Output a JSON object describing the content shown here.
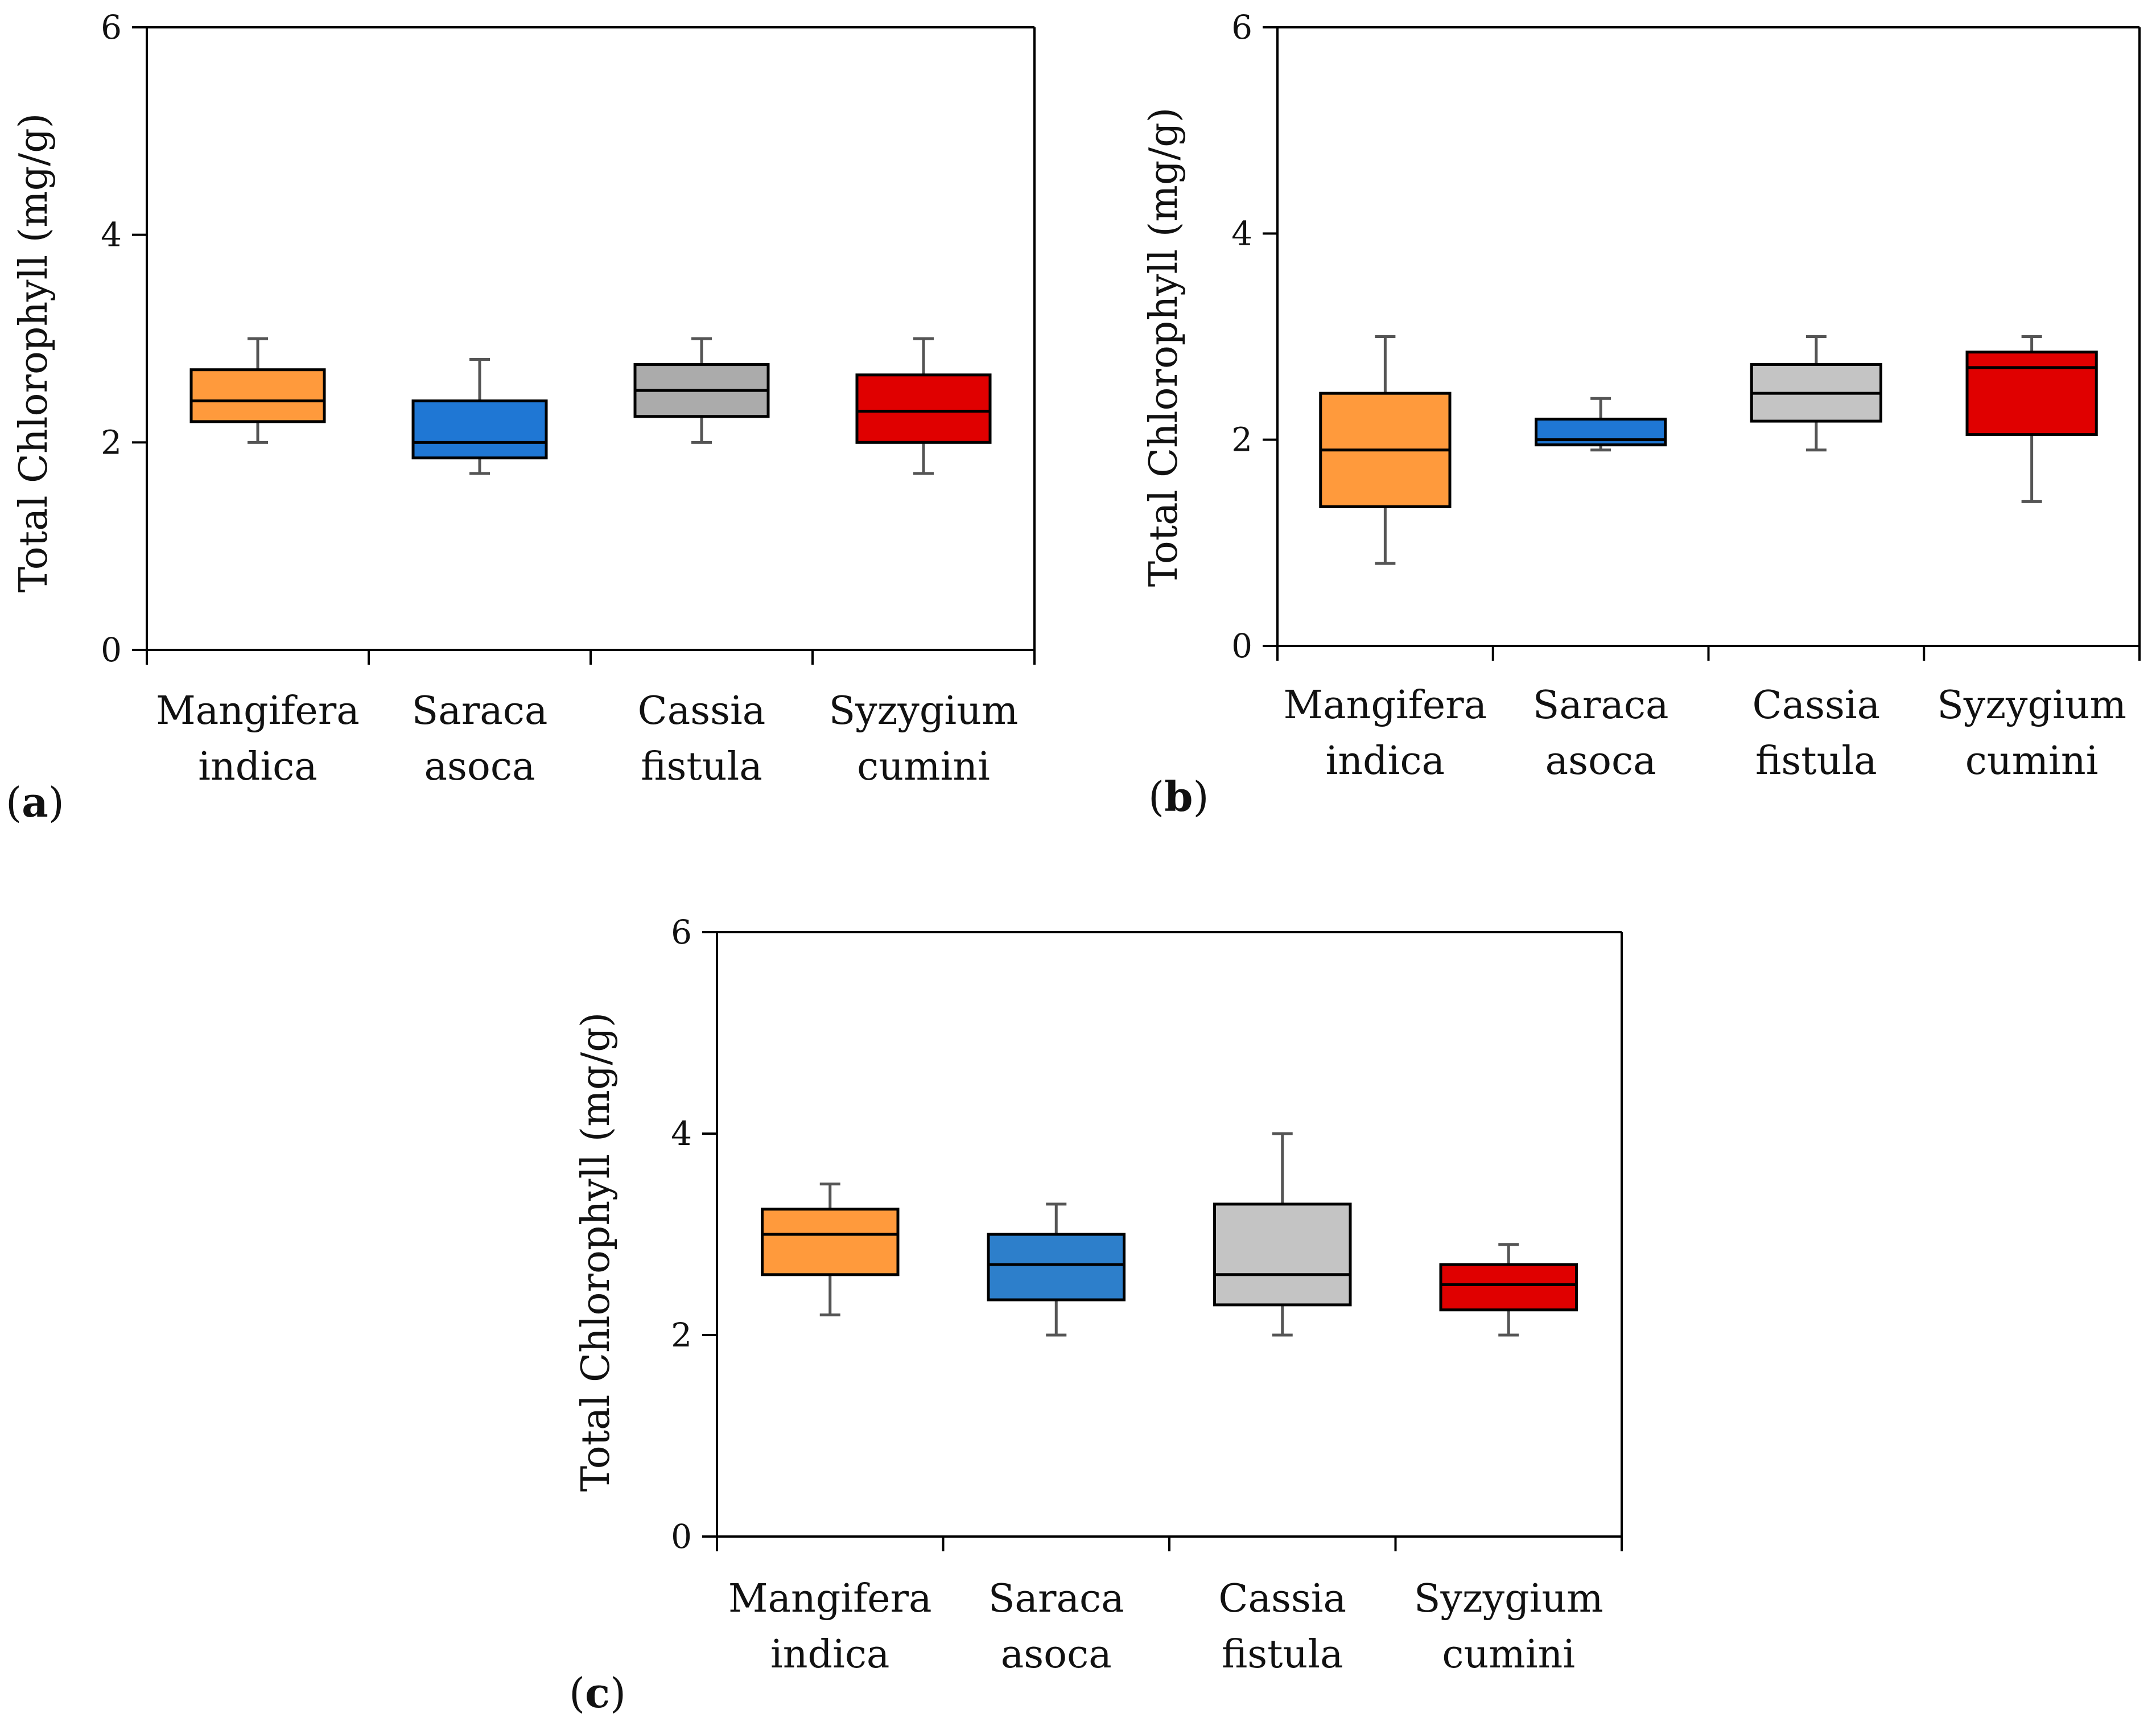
{
  "chart_data": [
    {
      "type": "boxplot",
      "panel_label": "a",
      "ylabel": "Total Chlorophyll (mg/g)",
      "ylim": [
        0,
        6
      ],
      "yticks": [
        "0",
        "2",
        "4",
        "6"
      ],
      "categories": [
        {
          "line1": "Mangifera",
          "line2": "indica",
          "color": "#FF9A3C",
          "min": 2.0,
          "q1": 2.2,
          "median": 2.4,
          "q3": 2.7,
          "max": 3.0
        },
        {
          "line1": "Saraca",
          "line2": "asoca",
          "color": "#1F77D4",
          "min": 1.7,
          "q1": 1.85,
          "median": 2.0,
          "q3": 2.4,
          "max": 2.8
        },
        {
          "line1": "Cassia",
          "line2": "fistula",
          "color": "#ABABAB",
          "min": 2.0,
          "q1": 2.25,
          "median": 2.5,
          "q3": 2.75,
          "max": 3.0
        },
        {
          "line1": "Syzygium",
          "line2": "cumini",
          "color": "#E00000",
          "min": 1.7,
          "q1": 2.0,
          "median": 2.3,
          "q3": 2.65,
          "max": 3.0
        }
      ]
    },
    {
      "type": "boxplot",
      "panel_label": "b",
      "ylabel": "Total Chlorophyll (mg/g)",
      "ylim": [
        0,
        6
      ],
      "yticks": [
        "0",
        "2",
        "4",
        "6"
      ],
      "categories": [
        {
          "line1": "Mangifera",
          "line2": "indica",
          "color": "#FF9A3C",
          "min": 0.8,
          "q1": 1.35,
          "median": 1.9,
          "q3": 2.45,
          "max": 3.0
        },
        {
          "line1": "Saraca",
          "line2": "asoca",
          "color": "#1F77D4",
          "min": 1.9,
          "q1": 1.95,
          "median": 2.0,
          "q3": 2.2,
          "max": 2.4
        },
        {
          "line1": "Cassia",
          "line2": "fistula",
          "color": "#C4C4C4",
          "min": 1.9,
          "q1": 2.18,
          "median": 2.45,
          "q3": 2.73,
          "max": 3.0
        },
        {
          "line1": "Syzygium",
          "line2": "cumini",
          "color": "#E00000",
          "min": 1.4,
          "q1": 2.05,
          "median": 2.7,
          "q3": 2.85,
          "max": 3.0
        }
      ]
    },
    {
      "type": "boxplot",
      "panel_label": "c",
      "ylabel": "Total Chlorophyll (mg/g)",
      "ylim": [
        0,
        6
      ],
      "yticks": [
        "0",
        "2",
        "4",
        "6"
      ],
      "categories": [
        {
          "line1": "Mangifera",
          "line2": "indica",
          "color": "#FF9A3C",
          "min": 2.2,
          "q1": 2.6,
          "median": 3.0,
          "q3": 3.25,
          "max": 3.5
        },
        {
          "line1": "Saraca",
          "line2": "asoca",
          "color": "#2D7FCB",
          "min": 2.0,
          "q1": 2.35,
          "median": 2.7,
          "q3": 3.0,
          "max": 3.3
        },
        {
          "line1": "Cassia",
          "line2": "fistula",
          "color": "#C4C4C4",
          "min": 2.0,
          "q1": 2.3,
          "median": 2.6,
          "q3": 3.3,
          "max": 4.0
        },
        {
          "line1": "Syzygium",
          "line2": "cumini",
          "color": "#E00000",
          "min": 2.0,
          "q1": 2.25,
          "median": 2.5,
          "q3": 2.7,
          "max": 2.9
        }
      ]
    }
  ]
}
